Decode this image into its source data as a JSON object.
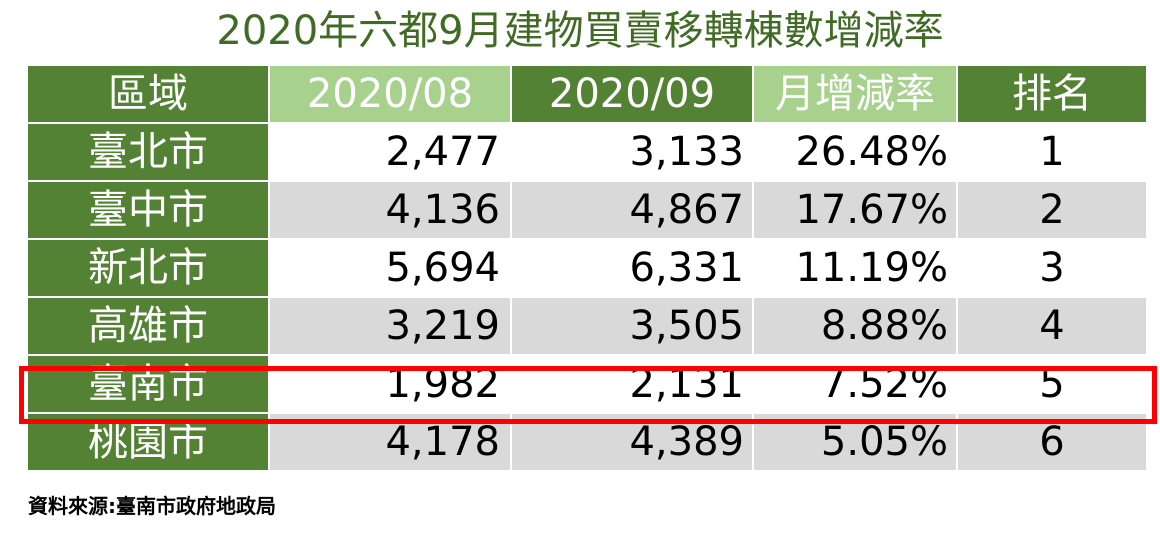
{
  "title": "2020年六都9月建物買賣移轉棟數增減率",
  "table": {
    "headers": [
      "區域",
      "2020/08",
      "2020/09",
      "月增減率",
      "排名"
    ],
    "rows": [
      {
        "region": "臺北市",
        "aug": "2,477",
        "sep": "3,133",
        "rate": "26.48%",
        "rank": "1"
      },
      {
        "region": "臺中市",
        "aug": "4,136",
        "sep": "4,867",
        "rate": "17.67%",
        "rank": "2"
      },
      {
        "region": "新北市",
        "aug": "5,694",
        "sep": "6,331",
        "rate": "11.19%",
        "rank": "3"
      },
      {
        "region": "高雄市",
        "aug": "3,219",
        "sep": "3,505",
        "rate": "8.88%",
        "rank": "4"
      },
      {
        "region": "臺南市",
        "aug": "1,982",
        "sep": "2,131",
        "rate": "7.52%",
        "rank": "5"
      },
      {
        "region": "桃園市",
        "aug": "4,178",
        "sep": "4,389",
        "rate": "5.05%",
        "rank": "6"
      }
    ],
    "highlighted_region": "臺南市"
  },
  "source": "資料來源:臺南市政府地政局",
  "colors": {
    "title": "#3f6b25",
    "header_dark": "#548235",
    "header_light": "#a9d18e",
    "row_alt": "#d9d9d9",
    "highlight_border": "#ff0000"
  }
}
